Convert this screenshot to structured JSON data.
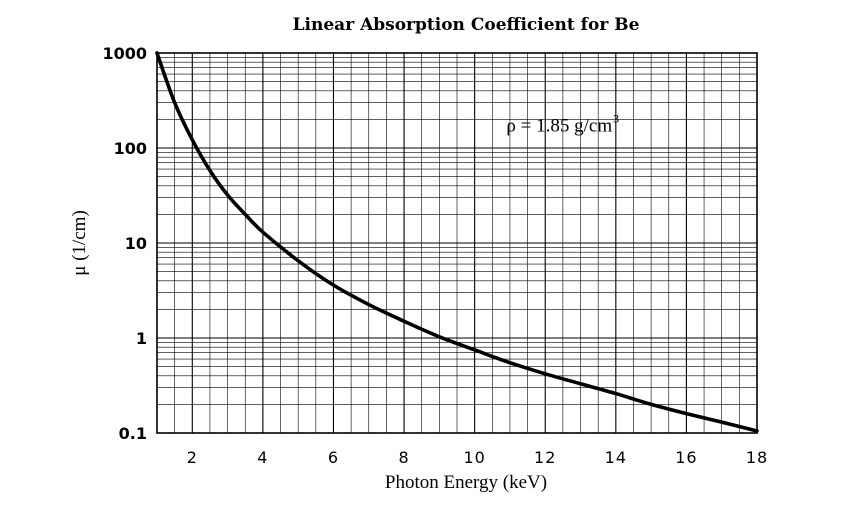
{
  "chart_data": {
    "type": "line",
    "title": "Linear Absorption Coefficient for Be",
    "xlabel": "Photon Energy (keV)",
    "ylabel": "μ (1/cm)",
    "xlim": [
      1,
      18
    ],
    "ylim": [
      0.1,
      1000
    ],
    "yscale": "log",
    "grid": true,
    "xticks": [
      2,
      4,
      6,
      8,
      10,
      12,
      14,
      16,
      18
    ],
    "xtick_labels": [
      "2",
      "4",
      "6",
      "8",
      "10",
      "12",
      "14",
      "16",
      "18"
    ],
    "yticks": [
      0.1,
      1,
      10,
      100,
      1000
    ],
    "ytick_labels": [
      "0.1",
      "1",
      "10",
      "100",
      "1000"
    ],
    "annotation": {
      "text": "ρ = 1.85 g/cm",
      "superscript": "3",
      "x": 10.9,
      "y": 150
    },
    "series": [
      {
        "x": [
          1.0,
          1.5,
          2.0,
          2.5,
          3.0,
          3.5,
          4.0,
          5.0,
          6.0,
          7.0,
          8.0,
          9.0,
          10.0,
          11.0,
          12.0,
          13.0,
          14.0,
          15.0,
          16.0,
          17.0,
          18.0
        ],
        "y": [
          1000,
          300,
          122,
          58,
          32,
          20,
          13,
          6.5,
          3.6,
          2.25,
          1.5,
          1.03,
          0.75,
          0.55,
          0.42,
          0.33,
          0.26,
          0.2,
          0.16,
          0.13,
          0.105
        ]
      }
    ],
    "colors": {
      "line": "#000000",
      "grid": "#000000",
      "background": "#ffffff"
    }
  }
}
